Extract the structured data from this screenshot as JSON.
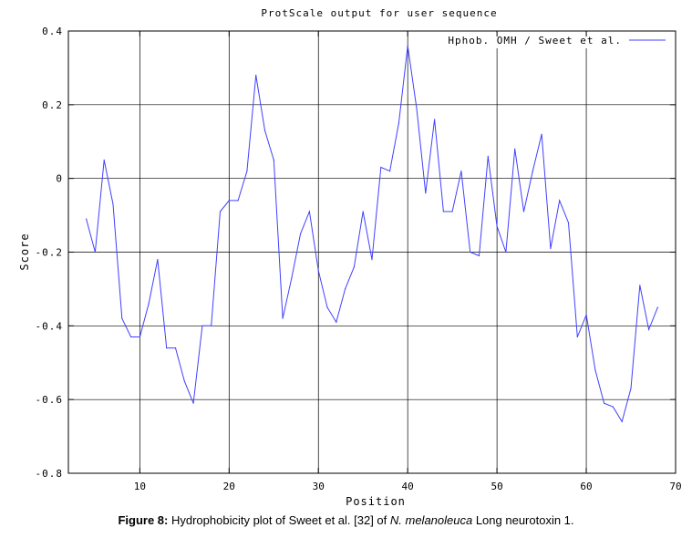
{
  "chart_data": {
    "type": "line",
    "title": "ProtScale output for user sequence",
    "xlabel": "Position",
    "ylabel": "Score",
    "xlim": [
      2,
      70
    ],
    "ylim": [
      -0.8,
      0.4
    ],
    "xticks": [
      "10",
      "20",
      "30",
      "40",
      "50",
      "60",
      "70"
    ],
    "yticks": [
      "0.4",
      "0.2",
      "0",
      "-0.2",
      "-0.4",
      "-0.6",
      "-0.8"
    ],
    "legend": "top-right",
    "grid": true,
    "series": [
      {
        "name": "Hphob. OMH / Sweet et al.",
        "color": "#4040ff",
        "x": [
          4,
          5,
          6,
          7,
          8,
          9,
          10,
          11,
          12,
          13,
          14,
          15,
          16,
          17,
          18,
          19,
          20,
          21,
          22,
          23,
          24,
          25,
          26,
          27,
          28,
          29,
          30,
          31,
          32,
          33,
          34,
          35,
          36,
          37,
          38,
          39,
          40,
          41,
          42,
          43,
          44,
          45,
          46,
          47,
          48,
          49,
          50,
          51,
          52,
          53,
          54,
          55,
          56,
          57,
          58,
          59,
          60,
          61,
          62,
          63,
          64,
          65,
          66,
          67,
          68
        ],
        "values": [
          -0.11,
          -0.2,
          0.05,
          -0.07,
          -0.38,
          -0.43,
          -0.43,
          -0.34,
          -0.22,
          -0.46,
          -0.46,
          -0.55,
          -0.61,
          -0.4,
          -0.4,
          -0.09,
          -0.06,
          -0.06,
          0.02,
          0.28,
          0.13,
          0.05,
          -0.38,
          -0.27,
          -0.15,
          -0.09,
          -0.25,
          -0.35,
          -0.39,
          -0.3,
          -0.24,
          -0.09,
          -0.22,
          0.03,
          0.02,
          0.15,
          0.36,
          0.19,
          -0.04,
          0.16,
          -0.09,
          -0.09,
          0.02,
          -0.2,
          -0.21,
          0.06,
          -0.13,
          -0.2,
          0.08,
          -0.09,
          0.02,
          0.12,
          -0.19,
          -0.06,
          -0.12,
          -0.43,
          -0.37,
          -0.52,
          -0.61,
          -0.62,
          -0.66,
          -0.57,
          -0.29,
          -0.41,
          -0.35
        ]
      }
    ]
  },
  "caption": {
    "label": "Figure 8:",
    "text_before": " Hydrophobicity plot of Sweet et al. [32] of ",
    "species": "N. melanoleuca",
    "text_after": " Long neurotoxin 1."
  }
}
